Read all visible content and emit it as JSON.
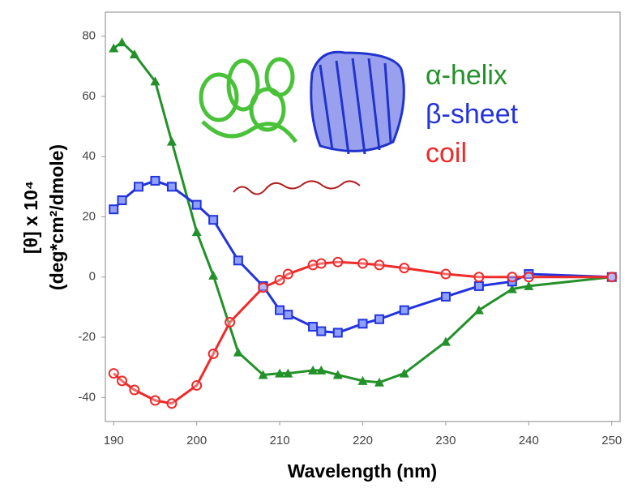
{
  "chart_data": {
    "type": "line",
    "xlabel": "Wavelength (nm)",
    "ylabel": [
      "[θ] x 10⁴",
      "(deg*cm²/dmole)"
    ],
    "xlim": [
      189,
      251
    ],
    "ylim": [
      -48,
      88
    ],
    "xticks": [
      190,
      200,
      210,
      220,
      230,
      240,
      250
    ],
    "yticks": [
      -40,
      -20,
      0,
      20,
      40,
      60,
      80
    ],
    "grid": false,
    "series": [
      {
        "name": "α-helix",
        "color": "#23912a",
        "marker": "triangle",
        "x": [
          190,
          191,
          192.5,
          195,
          197,
          200,
          202,
          205,
          208,
          210,
          211,
          214,
          215,
          217,
          220,
          222,
          225,
          230,
          234,
          238,
          240,
          250
        ],
        "values": [
          76,
          78,
          74,
          65,
          45,
          15,
          0.5,
          -25,
          -32.5,
          -32,
          -32,
          -31,
          -31,
          -32.5,
          -34.5,
          -35,
          -32,
          -21.5,
          -11,
          -4,
          -3,
          0
        ]
      },
      {
        "name": "β-sheet",
        "color": "#2233dd",
        "marker": "square",
        "x": [
          190,
          191,
          193,
          195,
          197,
          200,
          202,
          205,
          208,
          210,
          211,
          214,
          215,
          217,
          220,
          222,
          225,
          230,
          234,
          238,
          240,
          250
        ],
        "values": [
          22.5,
          25.5,
          30,
          32,
          30,
          24,
          19,
          5.5,
          -3,
          -11,
          -12.5,
          -16.5,
          -18,
          -18.5,
          -15.5,
          -14,
          -11,
          -6.5,
          -3,
          -1.5,
          1,
          0
        ]
      },
      {
        "name": "coil",
        "color": "#ee2a2a",
        "marker": "circle",
        "x": [
          190,
          191,
          192.5,
          195,
          197,
          200,
          202,
          204,
          208,
          210,
          211,
          214,
          215,
          217,
          220,
          222,
          225,
          230,
          234,
          238,
          240,
          250
        ],
        "values": [
          -32,
          -34.5,
          -37.5,
          -41,
          -42,
          -36,
          -25.5,
          -15,
          -3.5,
          -1,
          1,
          4,
          4.5,
          5,
          4.5,
          4,
          3,
          1,
          0,
          0,
          0,
          0
        ]
      }
    ]
  }
}
